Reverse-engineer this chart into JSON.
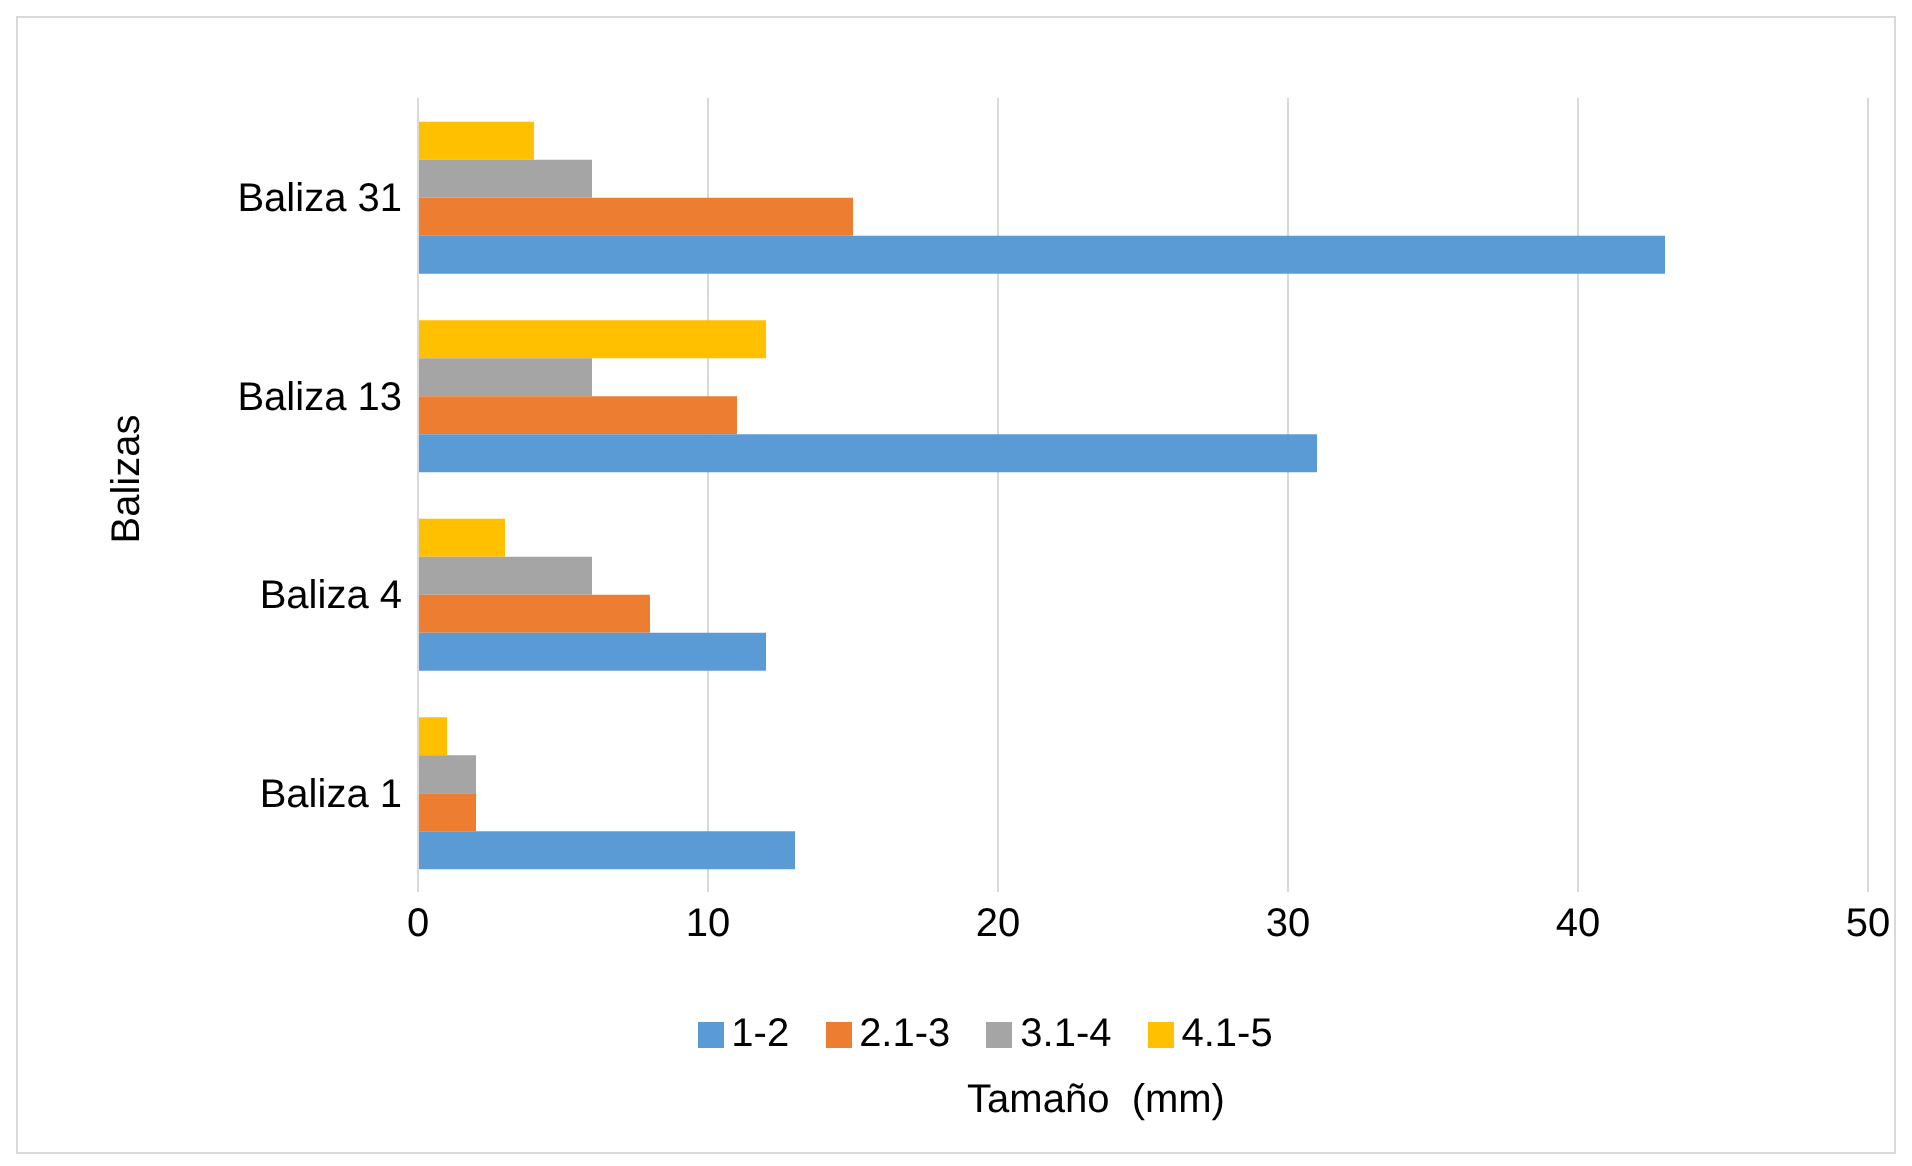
{
  "chart_data": {
    "type": "bar",
    "orientation": "horizontal",
    "xlabel": "Tamaño  (mm)",
    "ylabel": "Balizas",
    "categories": [
      "Baliza 31",
      "Baliza 13",
      "Baliza 4",
      "Baliza 1"
    ],
    "series": [
      {
        "name": "4.1-5",
        "color": "#ffc000",
        "values": [
          4,
          12,
          3,
          1
        ]
      },
      {
        "name": "3.1-4",
        "color": "#a5a5a5",
        "values": [
          6,
          6,
          6,
          2
        ]
      },
      {
        "name": "2.1-3",
        "color": "#ed7d31",
        "values": [
          15,
          11,
          8,
          2
        ]
      },
      {
        "name": "1-2",
        "color": "#5b9bd5",
        "values": [
          43,
          31,
          12,
          13
        ]
      }
    ],
    "xlim": [
      0,
      50
    ],
    "xticks": [
      0,
      10,
      20,
      30,
      40,
      50
    ],
    "grid": "x",
    "legend": "bottom"
  }
}
